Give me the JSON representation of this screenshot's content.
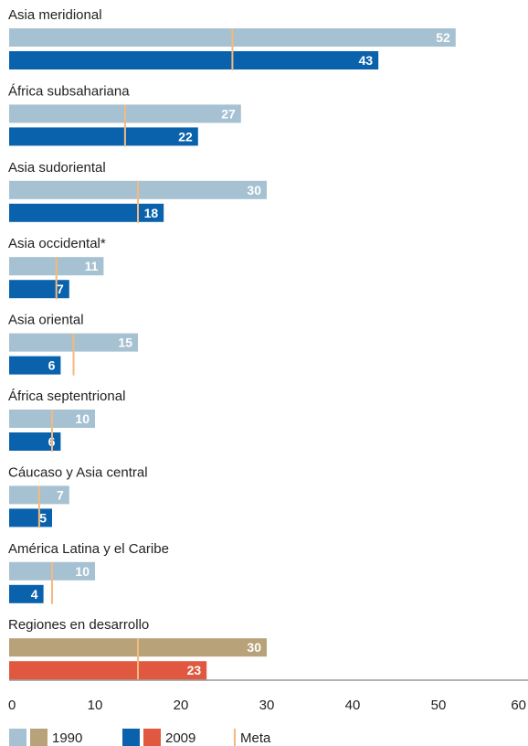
{
  "chart_data": {
    "type": "bar",
    "orientation": "horizontal",
    "categories": [
      "Asia meridional",
      "África subsahariana",
      "Asia sudoriental",
      "Asia occidental*",
      "Asia oriental",
      "África septentrional",
      "Cáucaso y Asia central",
      "América Latina y el Caribe",
      "Regiones en desarrollo"
    ],
    "series": [
      {
        "name": "1990",
        "values": [
          52,
          27,
          30,
          11,
          15,
          10,
          7,
          10,
          30
        ]
      },
      {
        "name": "2009",
        "values": [
          43,
          22,
          18,
          7,
          6,
          6,
          5,
          4,
          23
        ]
      },
      {
        "name": "Meta",
        "values": [
          26,
          13.5,
          15,
          5.5,
          7.5,
          5,
          3.5,
          5,
          15
        ]
      }
    ],
    "xlim": [
      0,
      60
    ],
    "xticks": [
      "0",
      "10",
      "20",
      "30",
      "40",
      "50",
      "60"
    ],
    "legend": {
      "placement": "bottom-left",
      "items": [
        "1990",
        "2009",
        "Meta"
      ]
    },
    "colors": {
      "bar_1990": "#a6c1d1",
      "bar_2009": "#0a62ad",
      "bar_1990_total": "#b8a27a",
      "bar_2009_total": "#e0583f",
      "meta": "#f5b97d",
      "label": "#ffffff",
      "text": "#222222",
      "axis": "#666666"
    },
    "highlight_category": "Regiones en desarrollo"
  }
}
